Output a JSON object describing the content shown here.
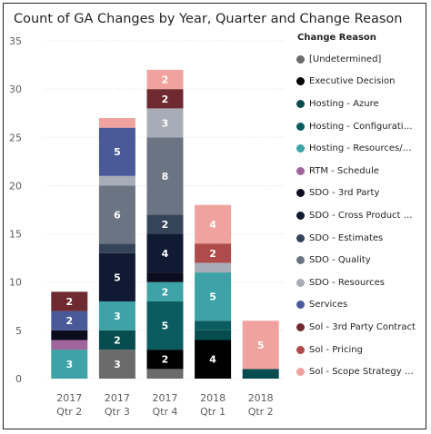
{
  "chart_data": {
    "type": "bar",
    "stacked": true,
    "title": "Count of GA Changes by Year, Quarter and Change Reason",
    "xlabel": "",
    "ylabel": "",
    "ylim": [
      0,
      35
    ],
    "yticks": [
      0,
      5,
      10,
      15,
      20,
      25,
      30,
      35
    ],
    "grid": true,
    "legend_position": "right",
    "legend_title": "Change Reason",
    "categories": [
      [
        "2017",
        "Qtr 2"
      ],
      [
        "2017",
        "Qtr 3"
      ],
      [
        "2017",
        "Qtr 4"
      ],
      [
        "2018",
        "Qtr 1"
      ],
      [
        "2018",
        "Qtr 2"
      ]
    ],
    "series": [
      {
        "name": "[Undetermined]",
        "color": "#6b6b6b",
        "values": [
          0,
          3,
          1,
          0,
          0
        ]
      },
      {
        "name": "Executive Decision",
        "color": "#000000",
        "values": [
          0,
          0,
          2,
          4,
          0
        ]
      },
      {
        "name": "Hosting - Azure",
        "color": "#074c4e",
        "values": [
          0,
          2,
          0,
          1,
          1
        ]
      },
      {
        "name": "Hosting - Configuratio...",
        "color": "#0b5c61",
        "values": [
          0,
          0,
          5,
          1,
          0
        ]
      },
      {
        "name": "Hosting - Resources/S...",
        "color": "#3da3a6",
        "values": [
          3,
          3,
          2,
          5,
          0
        ]
      },
      {
        "name": "RTM - Schedule",
        "color": "#a0659c",
        "values": [
          1,
          0,
          0,
          0,
          0
        ]
      },
      {
        "name": "SDO - 3rd Party",
        "color": "#0c0c1e",
        "values": [
          1,
          0,
          1,
          0,
          0
        ]
      },
      {
        "name": "SDO - Cross Product D...",
        "color": "#101a33",
        "values": [
          0,
          5,
          4,
          0,
          0
        ]
      },
      {
        "name": "SDO - Estimates",
        "color": "#364459",
        "values": [
          0,
          1,
          2,
          0,
          0
        ]
      },
      {
        "name": "SDO - Quality",
        "color": "#6a7483",
        "values": [
          0,
          6,
          8,
          0,
          0
        ]
      },
      {
        "name": "SDO - Resources",
        "color": "#a7acb6",
        "values": [
          0,
          1,
          3,
          1,
          0
        ]
      },
      {
        "name": "Services",
        "color": "#4a5a99",
        "values": [
          2,
          5,
          0,
          0,
          0
        ]
      },
      {
        "name": "Sol - 3rd Party Contract",
        "color": "#6e2a30",
        "values": [
          2,
          0,
          2,
          0,
          0
        ]
      },
      {
        "name": "Sol - Pricing",
        "color": "#b04b4b",
        "values": [
          0,
          0,
          0,
          2,
          0
        ]
      },
      {
        "name": "Sol - Scope Strategy C...",
        "color": "#f0a39e",
        "values": [
          0,
          1,
          2,
          4,
          5
        ]
      }
    ]
  }
}
